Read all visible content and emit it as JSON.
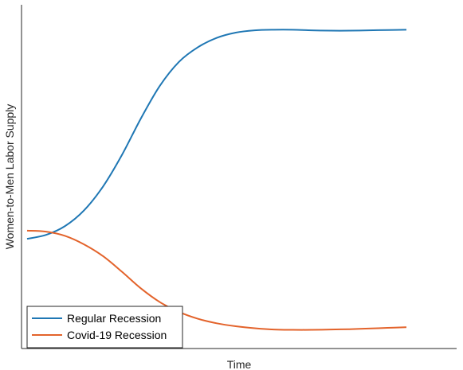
{
  "chart_data": {
    "type": "line",
    "xlabel": "Time",
    "ylabel": "Women-to-Men Labor Supply",
    "xlim": [
      0,
      100
    ],
    "ylim": [
      0,
      100
    ],
    "ticks": "none",
    "grid": false,
    "legend_position": "bottom-left",
    "series": [
      {
        "name": "Regular Recession",
        "color": "#1f77b4",
        "x": [
          0,
          5,
          10,
          15,
          20,
          25,
          30,
          35,
          40,
          45,
          50,
          55,
          60,
          65,
          70,
          75,
          80,
          85,
          90,
          95,
          100
        ],
        "y": [
          30.7,
          31.9,
          34.6,
          39.4,
          46.7,
          56.4,
          67.6,
          77.6,
          84.9,
          89.4,
          92.3,
          93.9,
          94.6,
          94.8,
          94.8,
          94.6,
          94.5,
          94.5,
          94.6,
          94.7,
          94.8
        ]
      },
      {
        "name": "Covid-19 Recession",
        "color": "#e3632b",
        "x": [
          0,
          5,
          10,
          15,
          20,
          25,
          30,
          35,
          40,
          45,
          50,
          55,
          60,
          65,
          70,
          75,
          80,
          85,
          90,
          95,
          100
        ],
        "y": [
          33.2,
          32.9,
          31.6,
          29.0,
          25.4,
          20.6,
          15.5,
          11.3,
          8.3,
          6.2,
          4.8,
          3.9,
          3.3,
          2.9,
          2.8,
          2.8,
          2.9,
          3.0,
          3.2,
          3.4,
          3.6
        ]
      }
    ]
  }
}
